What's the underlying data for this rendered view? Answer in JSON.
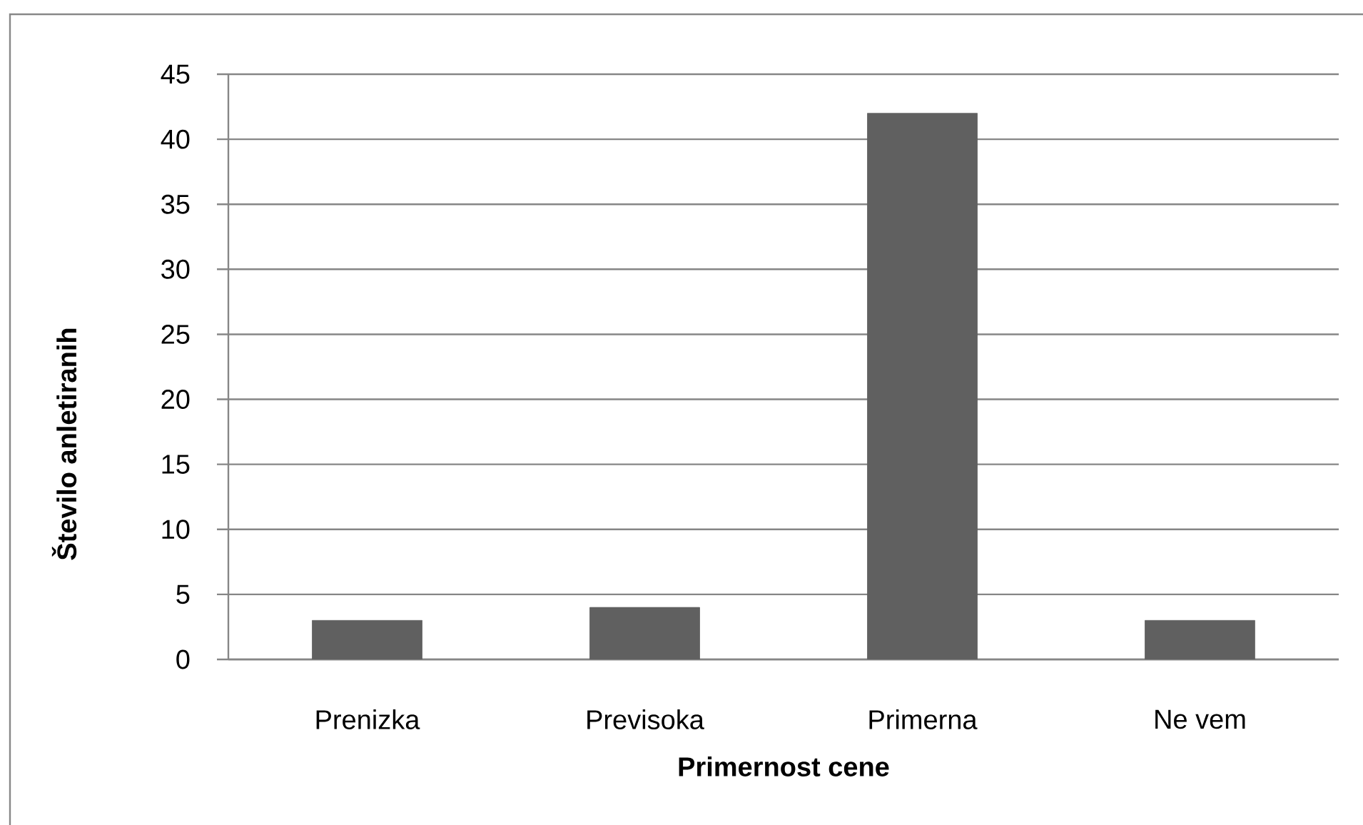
{
  "chart_data": {
    "type": "bar",
    "xlabel": "Primernost cene",
    "ylabel": "Število anletiranih",
    "categories": [
      "Prenizka",
      "Previsoka",
      "Primerna",
      "Ne vem"
    ],
    "values": [
      3,
      4,
      42,
      3
    ],
    "color": "#606060",
    "ylim": [
      0,
      45
    ],
    "yticks": [
      0,
      5,
      10,
      15,
      20,
      25,
      30,
      35,
      40,
      45
    ],
    "grid": "y"
  }
}
